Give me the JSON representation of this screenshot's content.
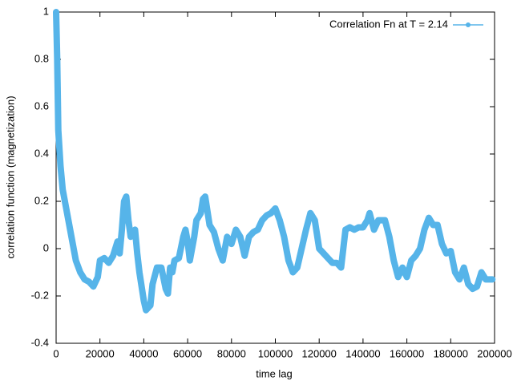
{
  "chart_data": {
    "type": "line",
    "xlabel": "time lag",
    "ylabel": "correlation function (magnetization)",
    "x": [
      0,
      500,
      1000,
      2000,
      3000,
      5000,
      7000,
      9000,
      11000,
      13000,
      15000,
      17000,
      19000,
      20000,
      22000,
      24000,
      26000,
      28000,
      29000,
      30000,
      31000,
      32000,
      33000,
      34000,
      36000,
      37000,
      38000,
      40000,
      41000,
      43000,
      44000,
      46000,
      48000,
      50000,
      51000,
      52000,
      53000,
      54000,
      56000,
      58000,
      59000,
      60000,
      61000,
      63000,
      64000,
      66000,
      67000,
      68000,
      69000,
      70000,
      72000,
      74000,
      76000,
      78000,
      80000,
      82000,
      84000,
      86000,
      88000,
      90000,
      92000,
      94000,
      96000,
      98000,
      100000,
      102000,
      104000,
      106000,
      108000,
      110000,
      112000,
      114000,
      116000,
      118000,
      120000,
      122000,
      124000,
      126000,
      128000,
      130000,
      132000,
      134000,
      136000,
      138000,
      140000,
      142000,
      143000,
      145000,
      147000,
      150000,
      152000,
      154000,
      156000,
      158000,
      160000,
      162000,
      164000,
      166000,
      168000,
      170000,
      172000,
      174000,
      176000,
      178000,
      180000,
      182000,
      184000,
      186000,
      188000,
      190000,
      192000,
      194000,
      196000,
      199000
    ],
    "series": [
      {
        "name": "Correlation Fn at T = 2.14",
        "color": "#56b4e9",
        "values": [
          1.0,
          0.8,
          0.5,
          0.35,
          0.25,
          0.15,
          0.05,
          -0.05,
          -0.1,
          -0.13,
          -0.14,
          -0.16,
          -0.12,
          -0.05,
          -0.04,
          -0.06,
          -0.03,
          0.03,
          -0.02,
          0.08,
          0.2,
          0.22,
          0.12,
          0.05,
          0.08,
          -0.02,
          -0.1,
          -0.22,
          -0.26,
          -0.24,
          -0.15,
          -0.08,
          -0.08,
          -0.17,
          -0.19,
          -0.08,
          -0.1,
          -0.05,
          -0.04,
          0.05,
          0.08,
          0.03,
          -0.05,
          0.05,
          0.12,
          0.15,
          0.21,
          0.22,
          0.16,
          0.1,
          0.07,
          0.0,
          -0.05,
          0.05,
          0.02,
          0.08,
          0.05,
          -0.03,
          0.05,
          0.07,
          0.08,
          0.12,
          0.14,
          0.15,
          0.17,
          0.12,
          0.05,
          -0.05,
          -0.1,
          -0.08,
          0.0,
          0.08,
          0.15,
          0.12,
          0.0,
          -0.02,
          -0.04,
          -0.06,
          -0.06,
          -0.08,
          0.08,
          0.09,
          0.08,
          0.09,
          0.09,
          0.12,
          0.15,
          0.08,
          0.12,
          0.12,
          0.05,
          -0.05,
          -0.12,
          -0.08,
          -0.12,
          -0.05,
          -0.03,
          0.0,
          0.08,
          0.13,
          0.1,
          0.1,
          0.02,
          -0.02,
          -0.01,
          -0.1,
          -0.13,
          -0.08,
          -0.15,
          -0.17,
          -0.16,
          -0.1,
          -0.13,
          -0.13
        ]
      }
    ],
    "xlim": [
      0,
      200000
    ],
    "ylim": [
      -0.4,
      1
    ],
    "xticks": [
      0,
      20000,
      40000,
      60000,
      80000,
      100000,
      120000,
      140000,
      160000,
      180000,
      200000
    ],
    "yticks": [
      -0.4,
      -0.2,
      0,
      0.2,
      0.4,
      0.6,
      0.8,
      1
    ],
    "legend": "top-right",
    "grid": false
  }
}
